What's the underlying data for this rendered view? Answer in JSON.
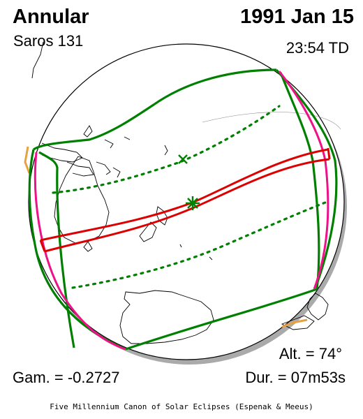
{
  "header": {
    "eclipse_type": "Annular",
    "saros": "Saros 131",
    "date": "1991 Jan 15",
    "time": "23:54 TD"
  },
  "stats": {
    "gamma": "Gam. = -0.2727",
    "altitude": "Alt. = 74°",
    "duration": "Dur. = 07m53s"
  },
  "footer": {
    "credit": "Five Millennium Canon of Solar Eclipses (Espenak & Meeus)"
  },
  "colors": {
    "annular_path": "#dd0000",
    "penumbral_limits": "#008000",
    "rise_set_curves": "#ee1188",
    "coastlines": "#000000",
    "globe_shadow": "#aaaaaa",
    "ice_edge": "#e8a040"
  },
  "icons": {
    "greatest_eclipse": "asterisk-marker",
    "subsolar_point": "x-marker"
  }
}
